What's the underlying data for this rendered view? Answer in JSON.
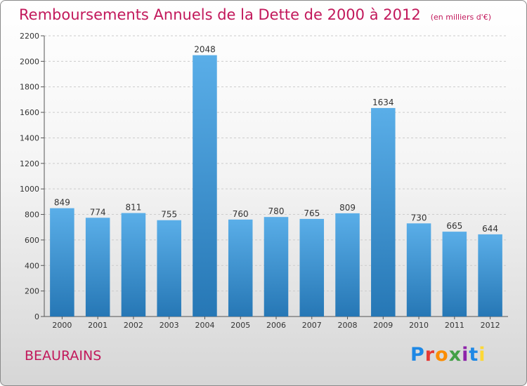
{
  "title": "Remboursements Annuels de la Dette de 2000 à 2012",
  "unit": "(en milliers d'€)",
  "location": "BEAURAINS",
  "logo": {
    "text": "Proxiti",
    "colors": [
      "#1e88e5",
      "#e53935",
      "#fb8c00",
      "#43a047",
      "#8e24aa",
      "#1e88e5",
      "#fdd835"
    ]
  },
  "colors": {
    "bar_top": "#5aaee8",
    "bar_bottom": "#2677b5",
    "accent": "#c2185b",
    "axis": "#555555",
    "grid": "#cccccc"
  },
  "chart_data": {
    "type": "bar",
    "title": "Remboursements Annuels de la Dette de 2000 à 2012",
    "subtitle": "(en milliers d'€)",
    "xlabel": "",
    "ylabel": "",
    "categories": [
      "2000",
      "2001",
      "2002",
      "2003",
      "2004",
      "2005",
      "2006",
      "2007",
      "2008",
      "2009",
      "2010",
      "2011",
      "2012"
    ],
    "values": [
      849,
      774,
      811,
      755,
      2048,
      760,
      780,
      765,
      809,
      1634,
      730,
      665,
      644
    ],
    "ylim": [
      0,
      2200
    ],
    "yticks": [
      0,
      200,
      400,
      600,
      800,
      1000,
      1200,
      1400,
      1600,
      1800,
      2000,
      2200
    ],
    "grid": "horizontal dashed",
    "legend": "none"
  }
}
